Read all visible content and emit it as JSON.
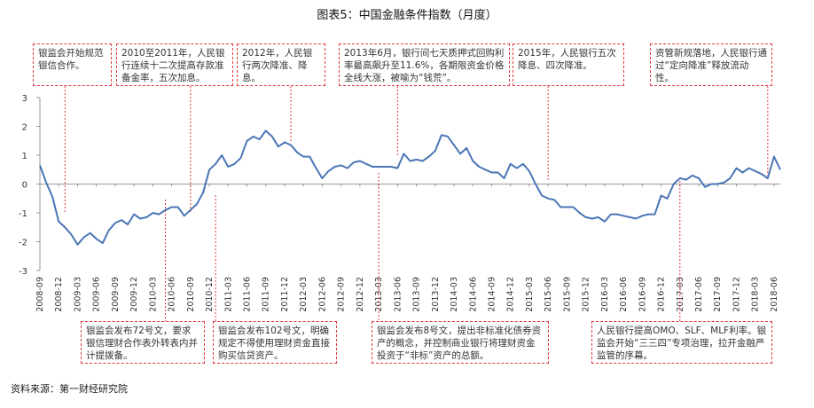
{
  "title": "图表5：中国金融条件指数（月度）",
  "source": "资料来源：第一财经研究院",
  "annotations": {
    "a1": "银监会开始规范银信合作。",
    "a2": "2010至2011年，人民银行连续十二次提高存款准备金率，五次加息。",
    "a3": "2012年，人民银行两次降准、降息。",
    "a4": "2013年6月，银行间七天质押式回购利率最高飙升至11.6%，各期限资金价格全线大涨，被喻为“钱荒”。",
    "a5": "2015年，人民银行五次降息、四次降准。",
    "a6": "资管新规落地，人民银行通过“定向降准”释放流动性。",
    "b1": "银监会发布72号文，要求银信理财合作表外转表内并计提拨备。",
    "b2": "银监会发布102号文，明确规定不得使用理财资金直接购买信贷资产。",
    "b3": "银监会发布8号文，提出非标准化债券资产的概念，并控制商业银行将理财资金投资于“非标”资产的总额。",
    "b4": "人民银行提高OMO、SLF、MLF利率。银监会开始“三三四”专项治理，拉开金融严监管的序幕。"
  },
  "chart_data": {
    "type": "line",
    "title": "图表5：中国金融条件指数（月度）",
    "ylim": [
      -3,
      3
    ],
    "yticks": [
      "-3",
      "-2",
      "-1",
      "0",
      "1",
      "2",
      "3"
    ],
    "x_start": "2008-09",
    "x_end": "2018-07",
    "xtick_labels": [
      "2008-09",
      "2008-12",
      "2009-03",
      "2009-06",
      "2009-09",
      "2009-12",
      "2010-03",
      "2010-06",
      "2010-09",
      "2010-12",
      "2011-03",
      "2011-06",
      "2011-09",
      "2011-12",
      "2012-03",
      "2012-06",
      "2012-09",
      "2012-12",
      "2013-03",
      "2013-06",
      "2013-09",
      "2013-12",
      "2014-03",
      "2014-06",
      "2014-09",
      "2014-12",
      "2015-03",
      "2015-06",
      "2015-09",
      "2015-12",
      "2016-03",
      "2016-06",
      "2016-09",
      "2016-12",
      "2017-03",
      "2017-06",
      "2017-09",
      "2017-12",
      "2018-03",
      "2018-06"
    ],
    "series": [
      {
        "color": "#4a76b5",
        "x": [
          "2008-09",
          "2008-10",
          "2008-11",
          "2008-12",
          "2009-01",
          "2009-02",
          "2009-03",
          "2009-04",
          "2009-05",
          "2009-06",
          "2009-07",
          "2009-08",
          "2009-09",
          "2009-10",
          "2009-11",
          "2009-12",
          "2010-01",
          "2010-02",
          "2010-03",
          "2010-04",
          "2010-05",
          "2010-06",
          "2010-07",
          "2010-08",
          "2010-09",
          "2010-10",
          "2010-11",
          "2010-12",
          "2011-01",
          "2011-02",
          "2011-03",
          "2011-04",
          "2011-05",
          "2011-06",
          "2011-07",
          "2011-08",
          "2011-09",
          "2011-10",
          "2011-11",
          "2011-12",
          "2012-01",
          "2012-02",
          "2012-03",
          "2012-04",
          "2012-05",
          "2012-06",
          "2012-07",
          "2012-08",
          "2012-09",
          "2012-10",
          "2012-11",
          "2012-12",
          "2013-01",
          "2013-02",
          "2013-03",
          "2013-04",
          "2013-05",
          "2013-06",
          "2013-07",
          "2013-08",
          "2013-09",
          "2013-10",
          "2013-11",
          "2013-12",
          "2014-01",
          "2014-02",
          "2014-03",
          "2014-04",
          "2014-05",
          "2014-06",
          "2014-07",
          "2014-08",
          "2014-09",
          "2014-10",
          "2014-11",
          "2014-12",
          "2015-01",
          "2015-02",
          "2015-03",
          "2015-04",
          "2015-05",
          "2015-06",
          "2015-07",
          "2015-08",
          "2015-09",
          "2015-10",
          "2015-11",
          "2015-12",
          "2016-01",
          "2016-02",
          "2016-03",
          "2016-04",
          "2016-05",
          "2016-06",
          "2016-07",
          "2016-08",
          "2016-09",
          "2016-10",
          "2016-11",
          "2016-12",
          "2017-01",
          "2017-02",
          "2017-03",
          "2017-04",
          "2017-05",
          "2017-06",
          "2017-07",
          "2017-08",
          "2017-09",
          "2017-10",
          "2017-11",
          "2017-12",
          "2018-01",
          "2018-02",
          "2018-03",
          "2018-04",
          "2018-05",
          "2018-06",
          "2018-07"
        ],
        "values": [
          0.65,
          0.05,
          -0.45,
          -1.3,
          -1.5,
          -1.75,
          -2.1,
          -1.85,
          -1.7,
          -1.9,
          -2.05,
          -1.6,
          -1.35,
          -1.25,
          -1.4,
          -1.05,
          -1.2,
          -1.15,
          -1.0,
          -1.05,
          -0.9,
          -0.8,
          -0.8,
          -1.1,
          -0.9,
          -0.7,
          -0.3,
          0.5,
          0.7,
          1.0,
          0.6,
          0.7,
          0.9,
          1.5,
          1.65,
          1.55,
          1.85,
          1.65,
          1.3,
          1.45,
          1.35,
          1.1,
          0.95,
          0.95,
          0.55,
          0.2,
          0.45,
          0.6,
          0.65,
          0.55,
          0.75,
          0.8,
          0.7,
          0.6,
          0.6,
          0.6,
          0.6,
          0.55,
          1.05,
          0.8,
          0.85,
          0.8,
          0.95,
          1.15,
          1.7,
          1.65,
          1.35,
          1.05,
          1.25,
          0.8,
          0.6,
          0.5,
          0.4,
          0.4,
          0.2,
          0.7,
          0.55,
          0.7,
          0.45,
          0.0,
          -0.4,
          -0.5,
          -0.55,
          -0.8,
          -0.8,
          -0.8,
          -1.0,
          -1.15,
          -1.2,
          -1.15,
          -1.3,
          -1.05,
          -1.05,
          -1.1,
          -1.15,
          -1.2,
          -1.1,
          -1.05,
          -1.05,
          -0.4,
          -0.5,
          0.0,
          0.2,
          0.15,
          0.3,
          0.2,
          -0.1,
          0.0,
          0.0,
          0.05,
          0.2,
          0.55,
          0.4,
          0.55,
          0.45,
          0.35,
          0.2,
          0.95,
          0.5
        ]
      }
    ],
    "grid": false,
    "legend": "none"
  }
}
